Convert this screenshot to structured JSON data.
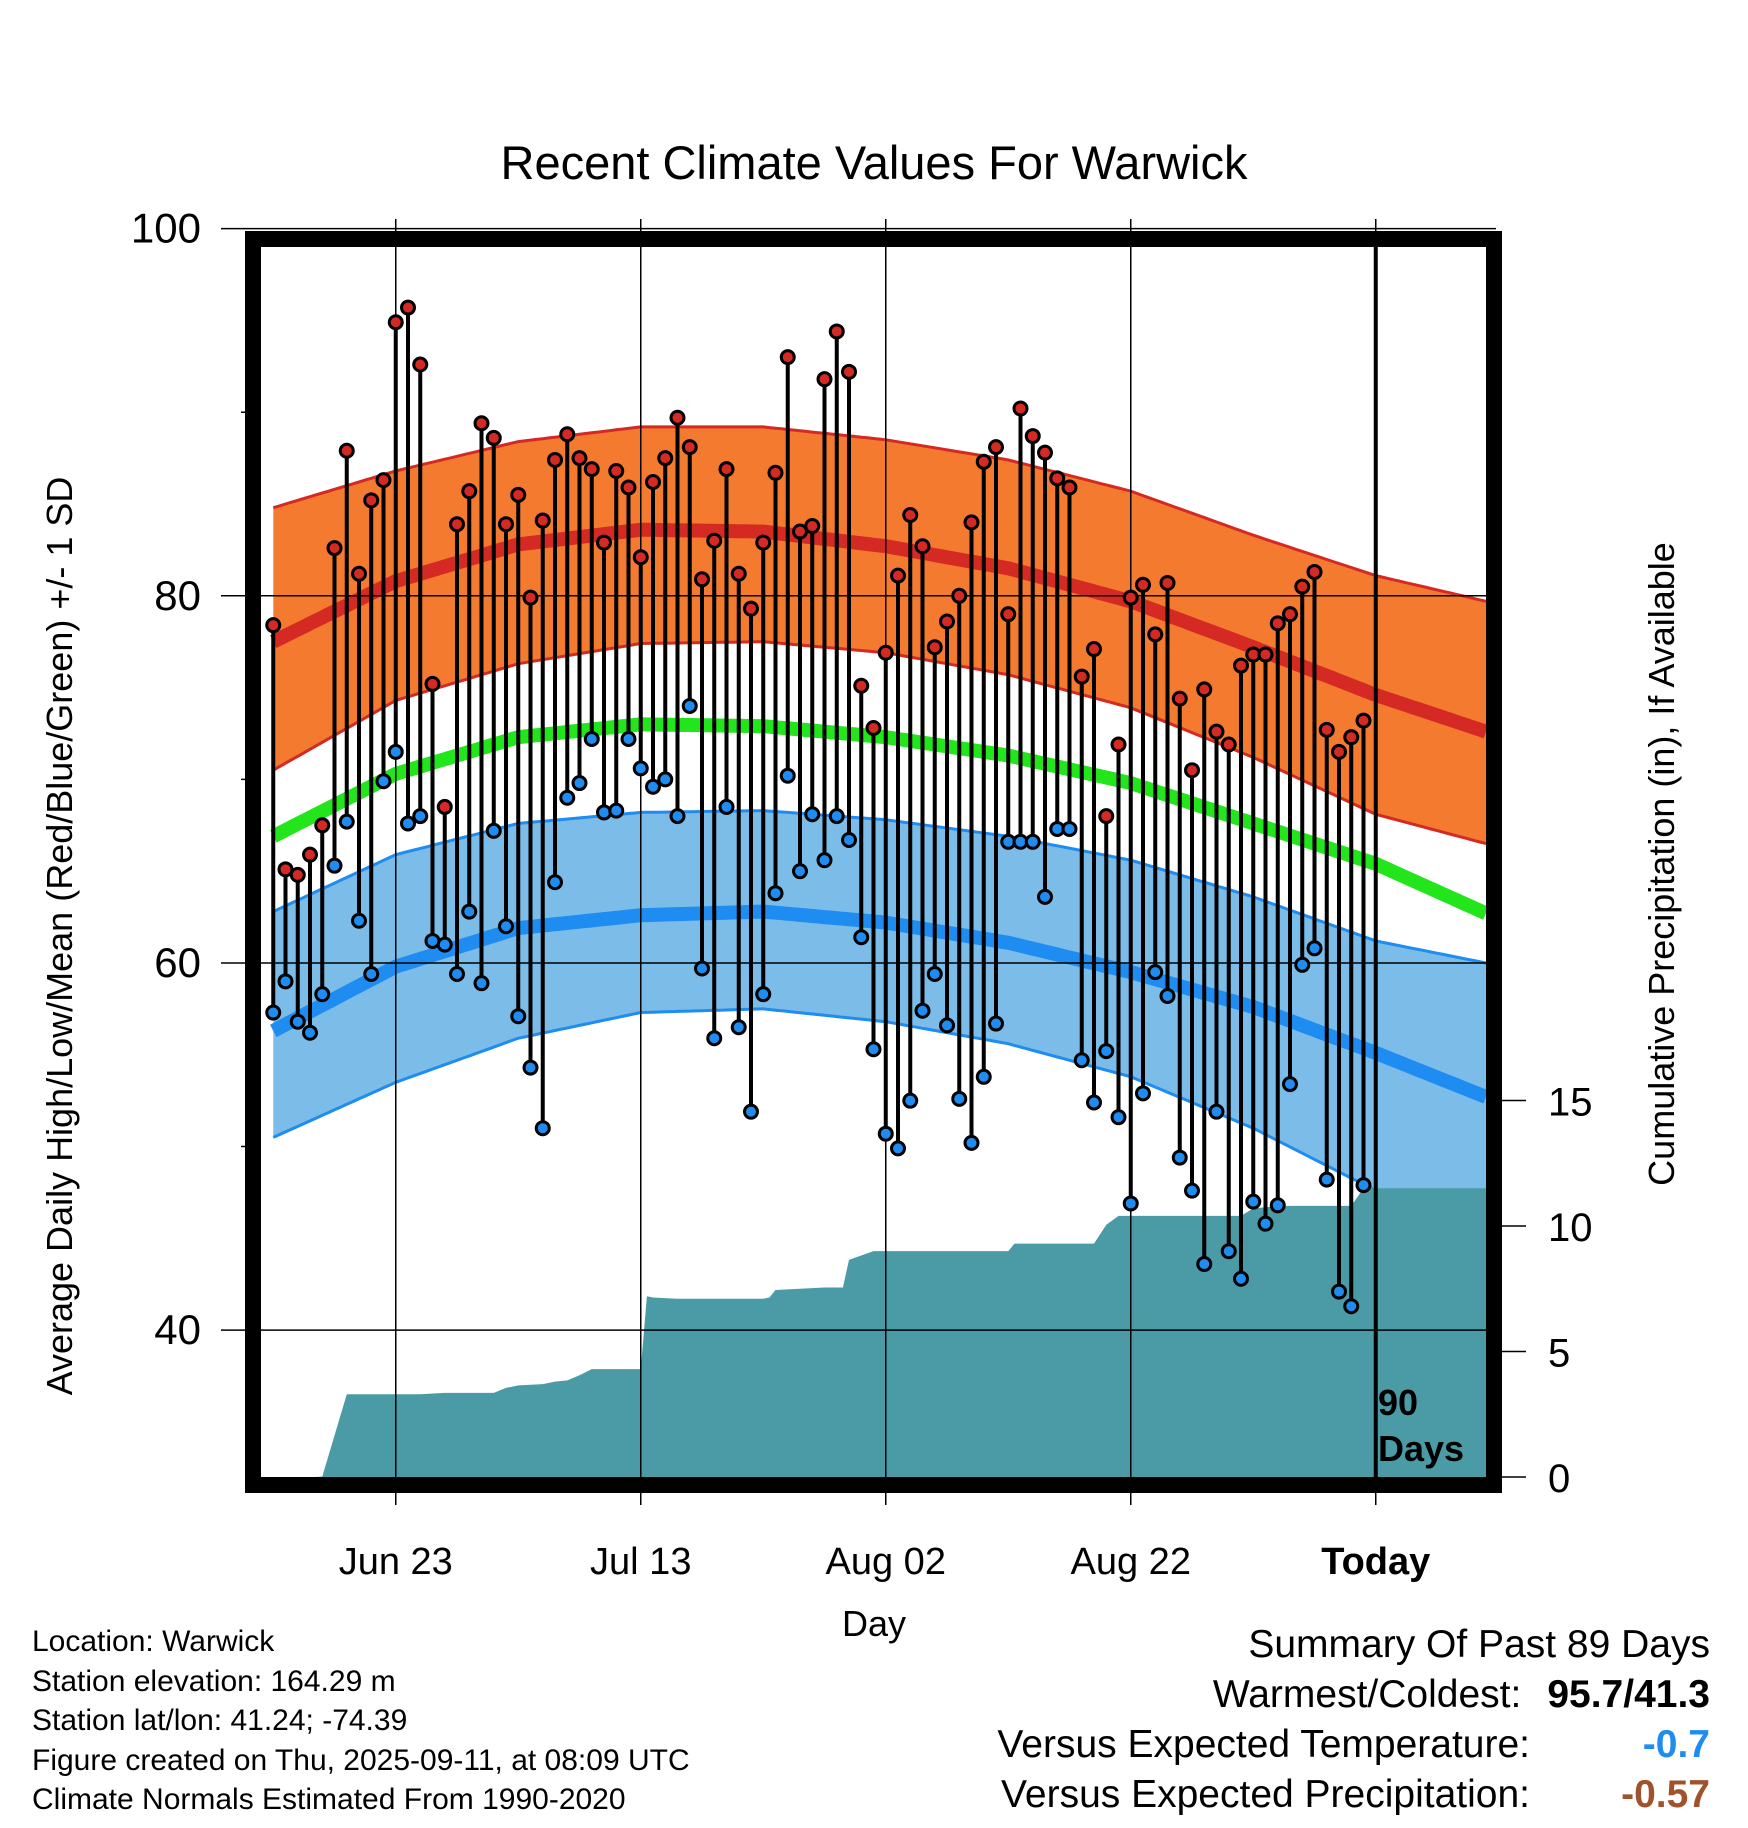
{
  "title": "Recent Climate Values For Warwick",
  "ylabel_left": "Average Daily High/Low/Mean (Red/Blue/Green) +/- 1 SD",
  "ylabel_right": "Cumulative Precipitation (in), If Available",
  "xlabel": "Day",
  "marker_label_line1": "90",
  "marker_label_line2": "Days",
  "info": {
    "location": "Location: Warwick",
    "elevation": "Station elevation: 164.29 m",
    "latlon": "Station lat/lon: 41.24; -74.39",
    "created": "Figure created on Thu, 2025-09-11, at 08:09 UTC",
    "normals": "Climate Normals Estimated From 1990-2020"
  },
  "summary": {
    "heading": "Summary Of Past 89 Days",
    "warm_cold_label": "Warmest/Coldest:",
    "warm_cold_value": "95.7/41.3",
    "temp_label": "Versus Expected Temperature:",
    "temp_value": "-0.7",
    "precip_label": "Versus Expected Precipitation:",
    "precip_value": "-0.57"
  },
  "colors": {
    "high_band": "#f47a30",
    "high_mean": "#d42a23",
    "mean_line": "#22e51c",
    "low_band": "#7bbde8",
    "low_mean": "#1e8cf0",
    "precip_fill": "#4a9ba6",
    "temp_anomaly": "#1e8cf0",
    "precip_anomaly": "#a0522d"
  },
  "chart_data": {
    "type": "line",
    "x_unit": "days relative to Sep 11 (Today = 0)",
    "xlim": [
      -91,
      9
    ],
    "xticks": [
      {
        "x": -80,
        "label": "Jun 23"
      },
      {
        "x": -60,
        "label": "Jul 13"
      },
      {
        "x": -40,
        "label": "Aug 02"
      },
      {
        "x": -20,
        "label": "Aug 22"
      },
      {
        "x": 0,
        "label": "Today"
      }
    ],
    "ylim": [
      32,
      99
    ],
    "yticks": [
      40,
      60,
      80,
      100
    ],
    "y2lim": [
      0,
      49
    ],
    "y2ticks": [
      0,
      5,
      10,
      15
    ],
    "grid": true,
    "normals": {
      "x": [
        -90,
        -80,
        -70,
        -60,
        -50,
        -40,
        -30,
        -20,
        -10,
        0,
        9
      ],
      "high_mean": [
        77.5,
        80.8,
        82.8,
        83.6,
        83.5,
        82.7,
        81.5,
        79.7,
        77.2,
        74.6,
        72.6
      ],
      "high_plus_sd": [
        84.8,
        86.8,
        88.4,
        89.2,
        89.2,
        88.5,
        87.4,
        85.7,
        83.3,
        81.1,
        79.7
      ],
      "high_minus_sd": [
        70.5,
        74.3,
        76.3,
        77.4,
        77.5,
        76.9,
        75.7,
        73.9,
        71.2,
        68.1,
        66.5
      ],
      "mean": [
        66.9,
        70.3,
        72.3,
        73.0,
        72.9,
        72.3,
        71.3,
        69.8,
        67.6,
        65.4,
        62.7
      ],
      "low_mean": [
        56.3,
        59.8,
        61.9,
        62.6,
        62.8,
        62.2,
        61.1,
        59.5,
        57.6,
        55.1,
        52.7
      ],
      "low_plus_sd": [
        62.8,
        65.9,
        67.6,
        68.2,
        68.3,
        67.8,
        66.9,
        65.6,
        63.6,
        61.2,
        60.0
      ],
      "low_minus_sd": [
        50.5,
        53.5,
        55.9,
        57.3,
        57.5,
        56.8,
        55.6,
        53.8,
        51.0,
        47.6,
        44.1
      ]
    },
    "daily": {
      "x": [
        -90,
        -89,
        -88,
        -87,
        -86,
        -85,
        -84,
        -83,
        -82,
        -81,
        -80,
        -79,
        -78,
        -77,
        -76,
        -75,
        -74,
        -73,
        -72,
        -71,
        -70,
        -69,
        -68,
        -67,
        -66,
        -65,
        -64,
        -63,
        -62,
        -61,
        -60,
        -59,
        -58,
        -57,
        -56,
        -55,
        -54,
        -53,
        -52,
        -51,
        -50,
        -49,
        -48,
        -47,
        -46,
        -45,
        -44,
        -43,
        -42,
        -41,
        -40,
        -39,
        -38,
        -37,
        -36,
        -35,
        -34,
        -33,
        -32,
        -31,
        -30,
        -29,
        -28,
        -27,
        -26,
        -25,
        -24,
        -23,
        -22,
        -21,
        -20,
        -19,
        -18,
        -17,
        -16,
        -15,
        -14,
        -13,
        -12,
        -11,
        -10,
        -9,
        -8,
        -7,
        -6,
        -5,
        -4,
        -3,
        -2,
        -1
      ],
      "high": [
        78.4,
        65.1,
        64.8,
        65.9,
        67.5,
        82.6,
        87.9,
        81.2,
        85.2,
        86.3,
        94.9,
        95.7,
        92.6,
        75.2,
        68.5,
        83.9,
        85.7,
        89.4,
        88.6,
        83.9,
        85.5,
        79.9,
        84.1,
        87.4,
        88.8,
        87.5,
        86.9,
        82.9,
        86.8,
        85.9,
        82.1,
        86.2,
        87.5,
        89.7,
        88.1,
        80.9,
        83.0,
        86.9,
        81.2,
        79.3,
        82.9,
        86.7,
        93.0,
        83.5,
        83.8,
        91.8,
        94.4,
        92.2,
        75.1,
        72.8,
        76.9,
        81.1,
        84.4,
        82.7,
        77.2,
        78.6,
        80.0,
        84.0,
        87.3,
        88.1,
        79.0,
        90.2,
        88.7,
        87.8,
        86.4,
        85.9,
        75.6,
        77.1,
        68.0,
        71.9,
        79.9,
        80.6,
        77.9,
        80.7,
        74.4,
        70.5,
        74.9,
        72.6,
        71.9,
        76.2,
        76.8,
        76.8,
        78.5,
        79.0,
        80.5,
        81.3,
        72.7,
        71.5,
        72.3,
        73.2
      ],
      "low": [
        57.3,
        59.0,
        56.8,
        56.2,
        58.3,
        65.3,
        67.7,
        62.3,
        59.4,
        69.9,
        71.5,
        67.6,
        68.0,
        61.2,
        61.0,
        59.4,
        62.8,
        58.9,
        67.2,
        62.0,
        57.1,
        54.3,
        51.0,
        64.4,
        69.0,
        69.8,
        72.2,
        68.2,
        68.3,
        72.2,
        70.6,
        69.6,
        70.0,
        68.0,
        74.0,
        59.7,
        55.9,
        68.5,
        56.5,
        51.9,
        58.3,
        63.8,
        70.2,
        65.0,
        68.1,
        65.6,
        68.0,
        66.7,
        61.4,
        55.3,
        50.7,
        49.9,
        52.5,
        57.4,
        59.4,
        56.6,
        52.6,
        50.2,
        53.8,
        56.7,
        66.6,
        66.6,
        66.6,
        63.6,
        67.3,
        67.3,
        54.7,
        52.4,
        55.2,
        51.6,
        46.9,
        52.9,
        59.5,
        58.2,
        49.4,
        47.6,
        43.6,
        51.9,
        44.3,
        42.8,
        47.0,
        45.8,
        46.8,
        53.4,
        59.9,
        60.8,
        48.2,
        42.1,
        41.3,
        47.9
      ]
    },
    "precip_cumulative": {
      "x": [
        -91,
        -86.5,
        -86,
        -84,
        -82,
        -80,
        -78,
        -76,
        -74,
        -72,
        -71,
        -70,
        -68,
        -67,
        -66,
        -65,
        -64,
        -62,
        -61,
        -60,
        -59.5,
        -59,
        -57,
        -55,
        -53,
        -51,
        -50,
        -49.5,
        -49,
        -47,
        -45,
        -43.5,
        -43,
        -41,
        -39.5,
        -39,
        -35,
        -33,
        -31,
        -30,
        -29.5,
        -28,
        -26,
        -25,
        -23,
        -22,
        -21,
        -20,
        -18,
        -15,
        -13,
        -11,
        -10,
        -9,
        -8,
        -7,
        -6,
        -5,
        -4,
        -3,
        -2,
        -1,
        0,
        9
      ],
      "y": [
        0,
        0,
        0.02,
        3.3,
        3.3,
        3.3,
        3.3,
        3.35,
        3.35,
        3.35,
        3.55,
        3.65,
        3.7,
        3.8,
        3.85,
        4.05,
        4.3,
        4.3,
        4.3,
        4.3,
        7.2,
        7.15,
        7.1,
        7.1,
        7.1,
        7.1,
        7.1,
        7.15,
        7.45,
        7.5,
        7.55,
        7.55,
        8.65,
        9.0,
        9.0,
        9.0,
        9.0,
        9.0,
        9.0,
        9.0,
        9.3,
        9.3,
        9.3,
        9.3,
        9.3,
        10.05,
        10.4,
        10.4,
        10.4,
        10.4,
        10.4,
        10.4,
        10.7,
        10.75,
        10.78,
        10.8,
        10.8,
        10.8,
        10.8,
        10.8,
        10.8,
        11.5,
        11.5,
        11.5
      ]
    }
  }
}
